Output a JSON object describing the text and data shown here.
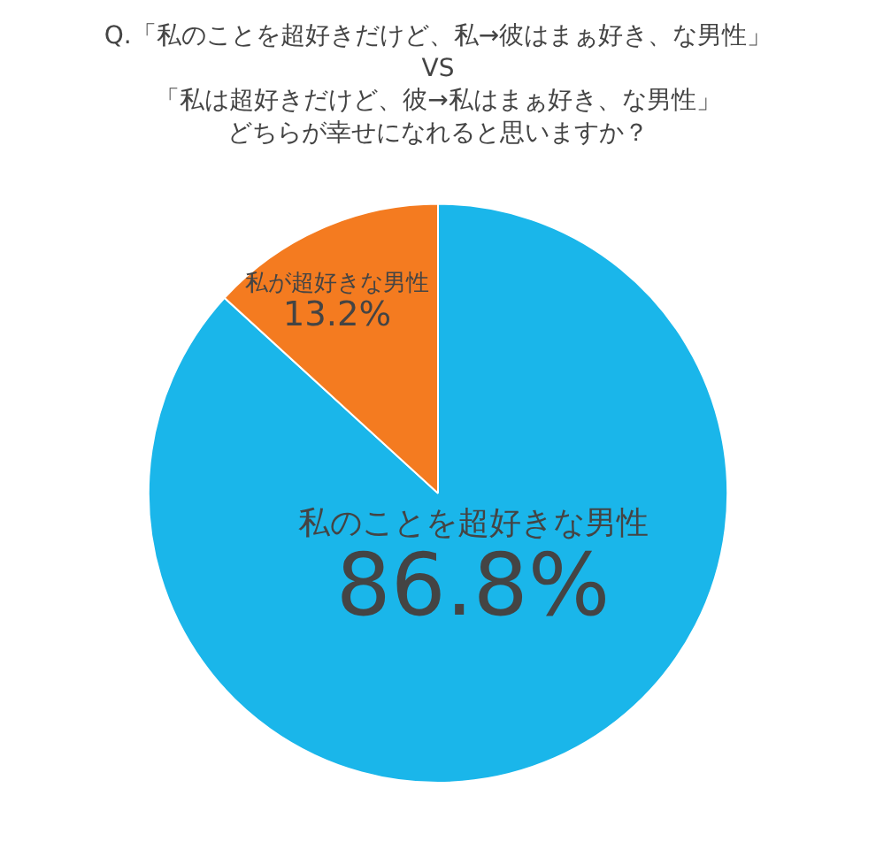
{
  "chart_data": {
    "type": "pie",
    "title": "Q.「私のことを超好きだけど、私→彼はまぁ好き、な男性」 VS 「私は超好きだけど、彼→私はまぁ好き、な男性」",
    "subtitle": "どちらが幸せになれると思いますか？",
    "categories": [
      "私のことを超好きな男性",
      "私が超好きな男性"
    ],
    "values": [
      86.8,
      13.2
    ],
    "colors": [
      "#1ab6ea",
      "#f47b20"
    ],
    "value_labels": [
      "86.8%",
      "13.2%"
    ],
    "legend": false
  }
}
